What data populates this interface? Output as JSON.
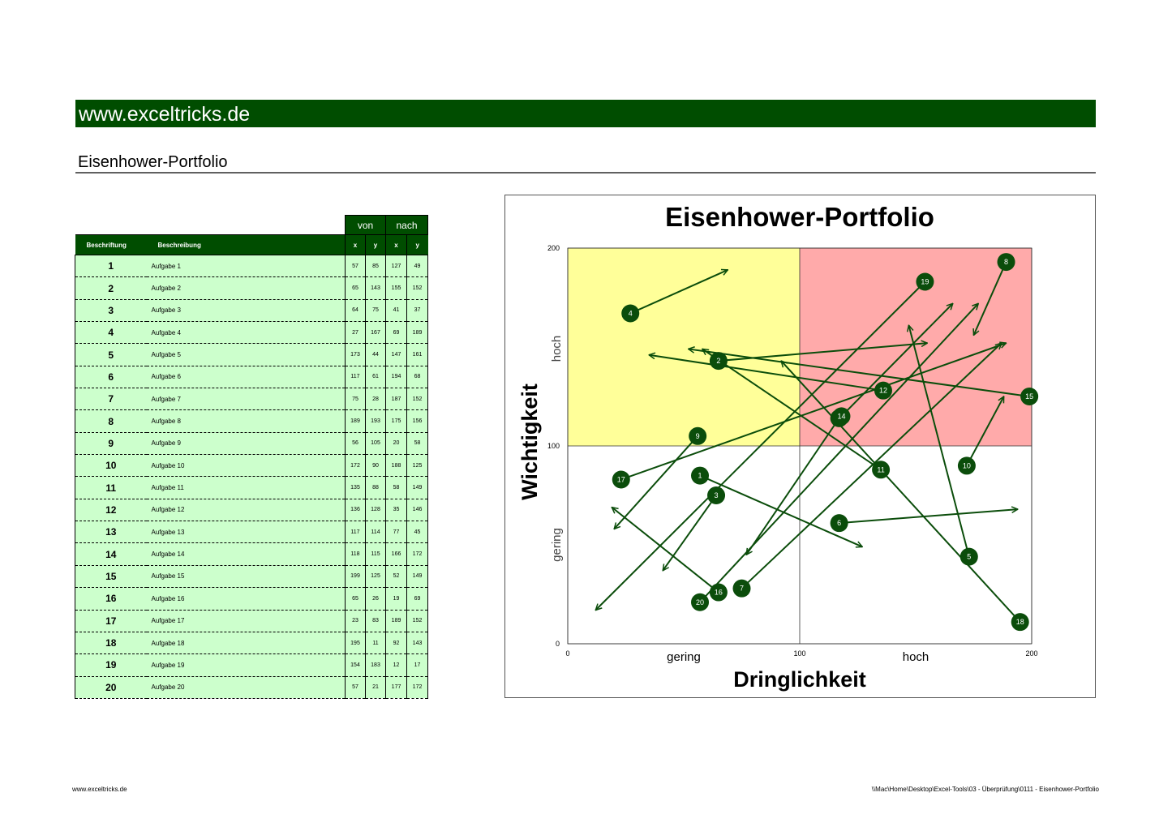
{
  "header": {
    "site": "www.exceltricks.de",
    "title": "Eisenhower-Portfolio"
  },
  "table": {
    "group_headers": [
      "von",
      "nach"
    ],
    "columns": [
      "Beschriftung",
      "Beschreibung",
      "x",
      "y",
      "x",
      "y"
    ],
    "rows": [
      [
        1,
        "Aufgabe 1",
        57,
        85,
        127,
        49
      ],
      [
        2,
        "Aufgabe 2",
        65,
        143,
        155,
        152
      ],
      [
        3,
        "Aufgabe 3",
        64,
        75,
        41,
        37
      ],
      [
        4,
        "Aufgabe 4",
        27,
        167,
        69,
        189
      ],
      [
        5,
        "Aufgabe 5",
        173,
        44,
        147,
        161
      ],
      [
        6,
        "Aufgabe 6",
        117,
        61,
        194,
        68
      ],
      [
        7,
        "Aufgabe 7",
        75,
        28,
        187,
        152
      ],
      [
        8,
        "Aufgabe 8",
        189,
        193,
        175,
        156
      ],
      [
        9,
        "Aufgabe 9",
        56,
        105,
        20,
        58
      ],
      [
        10,
        "Aufgabe 10",
        172,
        90,
        188,
        125
      ],
      [
        11,
        "Aufgabe 11",
        135,
        88,
        58,
        149
      ],
      [
        12,
        "Aufgabe 12",
        136,
        128,
        35,
        146
      ],
      [
        13,
        "Aufgabe 13",
        117,
        114,
        77,
        45
      ],
      [
        14,
        "Aufgabe 14",
        118,
        115,
        166,
        172
      ],
      [
        15,
        "Aufgabe 15",
        199,
        125,
        52,
        149
      ],
      [
        16,
        "Aufgabe 16",
        65,
        26,
        19,
        69
      ],
      [
        17,
        "Aufgabe 17",
        23,
        83,
        189,
        152
      ],
      [
        18,
        "Aufgabe 18",
        195,
        11,
        92,
        143
      ],
      [
        19,
        "Aufgabe 19",
        154,
        183,
        12,
        17
      ],
      [
        20,
        "Aufgabe 20",
        57,
        21,
        177,
        172
      ]
    ]
  },
  "chart_data": {
    "type": "arrow-scatter",
    "title": "Eisenhower-Portfolio",
    "x_label": "Dringlichkeit",
    "y_label": "Wichtigkeit",
    "x_zone_labels": [
      "gering",
      "hoch"
    ],
    "y_zone_labels": [
      "gering",
      "hoch"
    ],
    "xlim": [
      0,
      200
    ],
    "ylim": [
      0,
      200
    ],
    "xticks": [
      0,
      100,
      200
    ],
    "yticks": [
      0,
      100,
      200
    ],
    "color": "#0b4d0b",
    "quadrant_colors": {
      "top_left": "#ffff99",
      "top_right": "#ffaaaa"
    }
  },
  "footer": {
    "left": "www.exceltricks.de",
    "right": "\\\\Mac\\Home\\Desktop\\Excel-Tools\\03 - Überprüfung\\0111 - Eisenhower-Portfolio"
  }
}
